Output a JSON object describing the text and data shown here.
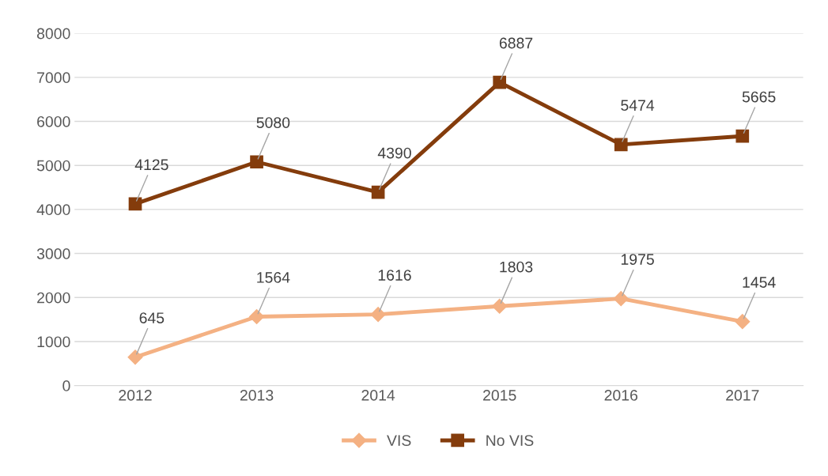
{
  "chart_data": {
    "type": "line",
    "categories": [
      "2012",
      "2013",
      "2014",
      "2015",
      "2016",
      "2017"
    ],
    "series": [
      {
        "name": "VIS",
        "color": "#f4b183",
        "marker": "diamond",
        "values": [
          645,
          1564,
          1616,
          1803,
          1975,
          1454
        ]
      },
      {
        "name": "No VIS",
        "color": "#843c0c",
        "marker": "square",
        "values": [
          4125,
          5080,
          4390,
          6887,
          5474,
          5665
        ]
      }
    ],
    "ylim": [
      0,
      8000
    ],
    "yticks": [
      0,
      1000,
      2000,
      3000,
      4000,
      5000,
      6000,
      7000,
      8000
    ],
    "grid": "y",
    "legend": "bottom",
    "data_labels": true,
    "line_style": "solid"
  }
}
